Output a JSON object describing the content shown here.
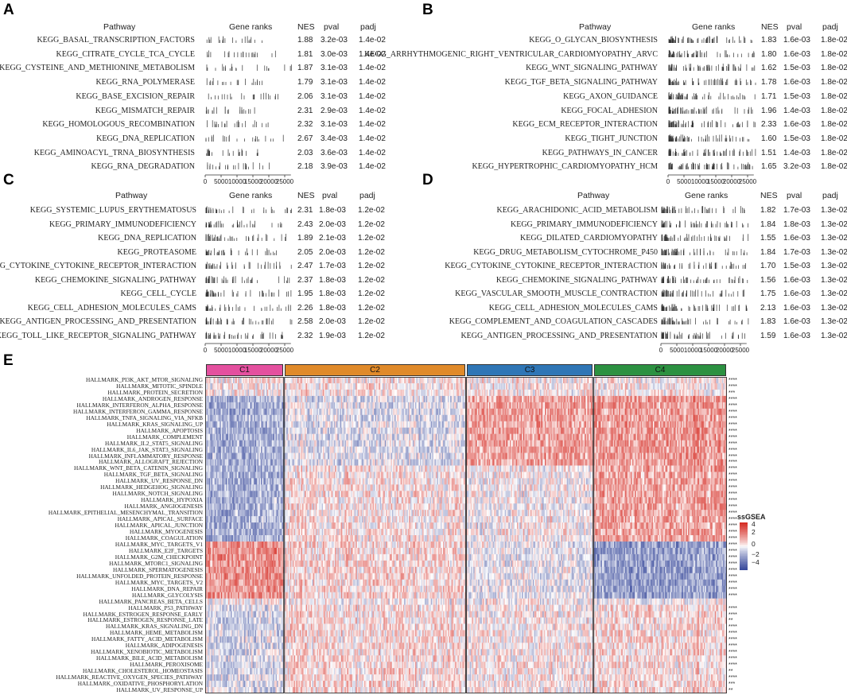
{
  "panel_letters": {
    "a": "A",
    "b": "B",
    "c": "C",
    "d": "D",
    "e": "E"
  },
  "headers": {
    "pathway": "Pathway",
    "gene_ranks": "Gene ranks",
    "nes": "NES",
    "pval": "pval",
    "padj": "padj"
  },
  "axis_ticks": [
    "0",
    "5000",
    "10000",
    "15000",
    "20000",
    "25000"
  ],
  "chart_data": [
    {
      "type": "table",
      "panel": "A",
      "rank_max": 25000,
      "rows": [
        {
          "pathway": "KEGG_BASAL_TRANSCRIPTION_FACTORS",
          "nes": "1.88",
          "pval": "3.2e-03",
          "padj": "1.4e-02"
        },
        {
          "pathway": "KEGG_CITRATE_CYCLE_TCA_CYCLE",
          "nes": "1.81",
          "pval": "3.0e-03",
          "padj": "1.4e-02"
        },
        {
          "pathway": "KEGG_CYSTEINE_AND_METHIONINE_METABOLISM",
          "nes": "1.87",
          "pval": "3.1e-03",
          "padj": "1.4e-02"
        },
        {
          "pathway": "KEGG_RNA_POLYMERASE",
          "nes": "1.79",
          "pval": "3.1e-03",
          "padj": "1.4e-02"
        },
        {
          "pathway": "KEGG_BASE_EXCISION_REPAIR",
          "nes": "2.06",
          "pval": "3.1e-03",
          "padj": "1.4e-02"
        },
        {
          "pathway": "KEGG_MISMATCH_REPAIR",
          "nes": "2.31",
          "pval": "2.9e-03",
          "padj": "1.4e-02"
        },
        {
          "pathway": "KEGG_HOMOLOGOUS_RECOMBINATION",
          "nes": "2.32",
          "pval": "3.1e-03",
          "padj": "1.4e-02"
        },
        {
          "pathway": "KEGG_DNA_REPLICATION",
          "nes": "2.67",
          "pval": "3.4e-03",
          "padj": "1.4e-02"
        },
        {
          "pathway": "KEGG_AMINOACYL_TRNA_BIOSYNTHESIS",
          "nes": "2.03",
          "pval": "3.6e-03",
          "padj": "1.4e-02"
        },
        {
          "pathway": "KEGG_RNA_DEGRADATION",
          "nes": "2.18",
          "pval": "3.9e-03",
          "padj": "1.4e-02"
        }
      ]
    },
    {
      "type": "table",
      "panel": "B",
      "rank_max": 25000,
      "rows": [
        {
          "pathway": "KEGG_O_GLYCAN_BIOSYNTHESIS",
          "nes": "1.83",
          "pval": "1.6e-03",
          "padj": "1.8e-02"
        },
        {
          "pathway": "KEGG_ARRHYTHMOGENIC_RIGHT_VENTRICULAR_CARDIOMYOPATHY_ARVC",
          "nes": "1.80",
          "pval": "1.6e-03",
          "padj": "1.8e-02"
        },
        {
          "pathway": "KEGG_WNT_SIGNALING_PATHWAY",
          "nes": "1.62",
          "pval": "1.5e-03",
          "padj": "1.8e-02"
        },
        {
          "pathway": "KEGG_TGF_BETA_SIGNALING_PATHWAY",
          "nes": "1.78",
          "pval": "1.6e-03",
          "padj": "1.8e-02"
        },
        {
          "pathway": "KEGG_AXON_GUIDANCE",
          "nes": "1.71",
          "pval": "1.5e-03",
          "padj": "1.8e-02"
        },
        {
          "pathway": "KEGG_FOCAL_ADHESION",
          "nes": "1.96",
          "pval": "1.4e-03",
          "padj": "1.8e-02"
        },
        {
          "pathway": "KEGG_ECM_RECEPTOR_INTERACTION",
          "nes": "2.33",
          "pval": "1.6e-03",
          "padj": "1.8e-02"
        },
        {
          "pathway": "KEGG_TIGHT_JUNCTION",
          "nes": "1.60",
          "pval": "1.5e-03",
          "padj": "1.8e-02"
        },
        {
          "pathway": "KEGG_PATHWAYS_IN_CANCER",
          "nes": "1.51",
          "pval": "1.4e-03",
          "padj": "1.8e-02"
        },
        {
          "pathway": "KEGG_HYPERTROPHIC_CARDIOMYOPATHY_HCM",
          "nes": "1.65",
          "pval": "3.2e-03",
          "padj": "1.8e-02"
        }
      ]
    },
    {
      "type": "table",
      "panel": "C",
      "rank_max": 25000,
      "rows": [
        {
          "pathway": "KEGG_SYSTEMIC_LUPUS_ERYTHEMATOSUS",
          "nes": "2.31",
          "pval": "1.8e-03",
          "padj": "1.2e-02"
        },
        {
          "pathway": "KEGG_PRIMARY_IMMUNODEFICIENCY",
          "nes": "2.43",
          "pval": "2.0e-03",
          "padj": "1.2e-02"
        },
        {
          "pathway": "KEGG_DNA_REPLICATION",
          "nes": "1.89",
          "pval": "2.1e-03",
          "padj": "1.2e-02"
        },
        {
          "pathway": "KEGG_PROTEASOME",
          "nes": "2.05",
          "pval": "2.0e-03",
          "padj": "1.2e-02"
        },
        {
          "pathway": "KEGG_CYTOKINE_CYTOKINE_RECEPTOR_INTERACTION",
          "nes": "2.47",
          "pval": "1.7e-03",
          "padj": "1.2e-02"
        },
        {
          "pathway": "KEGG_CHEMOKINE_SIGNALING_PATHWAY",
          "nes": "2.37",
          "pval": "1.8e-03",
          "padj": "1.2e-02"
        },
        {
          "pathway": "KEGG_CELL_CYCLE",
          "nes": "1.95",
          "pval": "1.8e-03",
          "padj": "1.2e-02"
        },
        {
          "pathway": "KEGG_CELL_ADHESION_MOLECULES_CAMS",
          "nes": "2.26",
          "pval": "1.8e-03",
          "padj": "1.2e-02"
        },
        {
          "pathway": "KEGG_ANTIGEN_PROCESSING_AND_PRESENTATION",
          "nes": "2.58",
          "pval": "2.0e-03",
          "padj": "1.2e-02"
        },
        {
          "pathway": "KEGG_TOLL_LIKE_RECEPTOR_SIGNALING_PATHWAY",
          "nes": "2.32",
          "pval": "1.9e-03",
          "padj": "1.2e-02"
        }
      ]
    },
    {
      "type": "table",
      "panel": "D",
      "rank_max": 25000,
      "rows": [
        {
          "pathway": "KEGG_ARACHIDONIC_ACID_METABOLISM",
          "nes": "1.82",
          "pval": "1.7e-03",
          "padj": "1.3e-02"
        },
        {
          "pathway": "KEGG_PRIMARY_IMMUNODEFICIENCY",
          "nes": "1.84",
          "pval": "1.8e-03",
          "padj": "1.3e-02"
        },
        {
          "pathway": "KEGG_DILATED_CARDIOMYOPATHY",
          "nes": "1.55",
          "pval": "1.6e-03",
          "padj": "1.3e-02"
        },
        {
          "pathway": "KEGG_DRUG_METABOLISM_CYTOCHROME_P450",
          "nes": "1.84",
          "pval": "1.7e-03",
          "padj": "1.3e-02"
        },
        {
          "pathway": "KEGG_CYTOKINE_CYTOKINE_RECEPTOR_INTERACTION",
          "nes": "1.70",
          "pval": "1.5e-03",
          "padj": "1.3e-02"
        },
        {
          "pathway": "KEGG_CHEMOKINE_SIGNALING_PATHWAY",
          "nes": "1.56",
          "pval": "1.6e-03",
          "padj": "1.3e-02"
        },
        {
          "pathway": "KEGG_VASCULAR_SMOOTH_MUSCLE_CONTRACTION",
          "nes": "1.75",
          "pval": "1.6e-03",
          "padj": "1.3e-02"
        },
        {
          "pathway": "KEGG_CELL_ADHESION_MOLECULES_CAMS",
          "nes": "2.13",
          "pval": "1.6e-03",
          "padj": "1.3e-02"
        },
        {
          "pathway": "KEGG_COMPLEMENT_AND_COAGULATION_CASCADES",
          "nes": "1.83",
          "pval": "1.6e-03",
          "padj": "1.3e-02"
        },
        {
          "pathway": "KEGG_ANTIGEN_PROCESSING_AND_PRESENTATION",
          "nes": "1.59",
          "pval": "1.6e-03",
          "padj": "1.3e-02"
        }
      ]
    },
    {
      "type": "heatmap",
      "panel": "E",
      "legend_title": "ssGSEA",
      "legend_ticks": [
        "4",
        "2",
        "0",
        "−2",
        "−4"
      ],
      "value_range": [
        -4,
        4
      ],
      "colors": {
        "low": "#3a4b9c",
        "mid": "#ffffff",
        "high": "#d62f27"
      },
      "clusters": [
        {
          "name": "C1",
          "color": "#e4509f",
          "samples": 65
        },
        {
          "name": "C2",
          "color": "#e08a2a",
          "samples": 150
        },
        {
          "name": "C3",
          "color": "#2f76b6",
          "samples": 105
        },
        {
          "name": "C4",
          "color": "#2c9141",
          "samples": 110
        }
      ],
      "rows": [
        {
          "name": "HALLMARK_PI3K_AKT_MTOR_SIGNALING",
          "sig": "****"
        },
        {
          "name": "HALLMARK_MITOTIC_SPINDLE",
          "sig": "****"
        },
        {
          "name": "HALLMARK_PROTEIN_SECRETION",
          "sig": "***"
        },
        {
          "name": "HALLMARK_ANDROGEN_RESPONSE",
          "sig": "****"
        },
        {
          "name": "HALLMARK_INTERFERON_ALPHA_RESPONSE",
          "sig": "****"
        },
        {
          "name": "HALLMARK_INTERFERON_GAMMA_RESPONSE",
          "sig": "****"
        },
        {
          "name": "HALLMARK_TNFA_SIGNALING_VIA_NFKB",
          "sig": "****"
        },
        {
          "name": "HALLMARK_KRAS_SIGNALING_UP",
          "sig": "****"
        },
        {
          "name": "HALLMARK_APOPTOSIS",
          "sig": "****"
        },
        {
          "name": "HALLMARK_COMPLEMENT",
          "sig": "****"
        },
        {
          "name": "HALLMARK_IL2_STAT5_SIGNALING",
          "sig": "****"
        },
        {
          "name": "HALLMARK_IL6_JAK_STAT3_SIGNALING",
          "sig": "****"
        },
        {
          "name": "HALLMARK_INFLAMMATORY_RESPONSE",
          "sig": "****"
        },
        {
          "name": "HALLMARK_ALLOGRAFT_REJECTION",
          "sig": "****"
        },
        {
          "name": "HALLMARK_WNT_BETA_CATENIN_SIGNALING",
          "sig": "****"
        },
        {
          "name": "HALLMARK_TGF_BETA_SIGNALING",
          "sig": "****"
        },
        {
          "name": "HALLMARK_UV_RESPONSE_DN",
          "sig": "****"
        },
        {
          "name": "HALLMARK_HEDGEHOG_SIGNALING",
          "sig": "****"
        },
        {
          "name": "HALLMARK_NOTCH_SIGNALING",
          "sig": "****"
        },
        {
          "name": "HALLMARK_HYPOXIA",
          "sig": "****"
        },
        {
          "name": "HALLMARK_ANGIOGENESIS",
          "sig": "****"
        },
        {
          "name": "HALLMARK_EPITHELIAL_MESENCHYMAL_TRANSITION",
          "sig": "****"
        },
        {
          "name": "HALLMARK_APICAL_SURFACE",
          "sig": "****"
        },
        {
          "name": "HALLMARK_APICAL_JUNCTION",
          "sig": "****"
        },
        {
          "name": "HALLMARK_MYOGENESIS",
          "sig": "****"
        },
        {
          "name": "HALLMARK_COAGULATION",
          "sig": "****"
        },
        {
          "name": "HALLMARK_MYC_TARGETS_V1",
          "sig": "****"
        },
        {
          "name": "HALLMARK_E2F_TARGETS",
          "sig": "****"
        },
        {
          "name": "HALLMARK_G2M_CHECKPOINT",
          "sig": "****"
        },
        {
          "name": "HALLMARK_MTORC1_SIGNALING",
          "sig": "****"
        },
        {
          "name": "HALLMARK_SPERMATOGENESIS",
          "sig": "****"
        },
        {
          "name": "HALLMARK_UNFOLDED_PROTEIN_RESPONSE",
          "sig": "****"
        },
        {
          "name": "HALLMARK_MYC_TARGETS_V2",
          "sig": "****"
        },
        {
          "name": "HALLMARK_DNA_REPAIR",
          "sig": "****"
        },
        {
          "name": "HALLMARK_GLYCOLYSIS",
          "sig": "****"
        },
        {
          "name": "HALLMARK_PANCREAS_BETA_CELLS",
          "sig": ""
        },
        {
          "name": "HALLMARK_P53_PATHWAY",
          "sig": "****"
        },
        {
          "name": "HALLMARK_ESTROGEN_RESPONSE_EARLY",
          "sig": "****"
        },
        {
          "name": "HALLMARK_ESTROGEN_RESPONSE_LATE",
          "sig": "**"
        },
        {
          "name": "HALLMARK_KRAS_SIGNALING_DN",
          "sig": "****"
        },
        {
          "name": "HALLMARK_HEME_METABOLISM",
          "sig": "****"
        },
        {
          "name": "HALLMARK_FATTY_ACID_METABOLISM",
          "sig": "****"
        },
        {
          "name": "HALLMARK_ADIPOGENESIS",
          "sig": "****"
        },
        {
          "name": "HALLMARK_XENOBIOTIC_METABOLISM",
          "sig": "****"
        },
        {
          "name": "HALLMARK_BILE_ACID_METABOLISM",
          "sig": "****"
        },
        {
          "name": "HALLMARK_PEROXISOME",
          "sig": "****"
        },
        {
          "name": "HALLMARK_CHOLESTEROL_HOMEOSTASIS",
          "sig": "**"
        },
        {
          "name": "HALLMARK_REACTIVE_OXYGEN_SPECIES_PATHWAY",
          "sig": "****"
        },
        {
          "name": "HALLMARK_OXIDATIVE_PHOSPHORYLATION",
          "sig": "***"
        },
        {
          "name": "HALLMARK_UV_RESPONSE_UP",
          "sig": "**"
        }
      ]
    }
  ]
}
